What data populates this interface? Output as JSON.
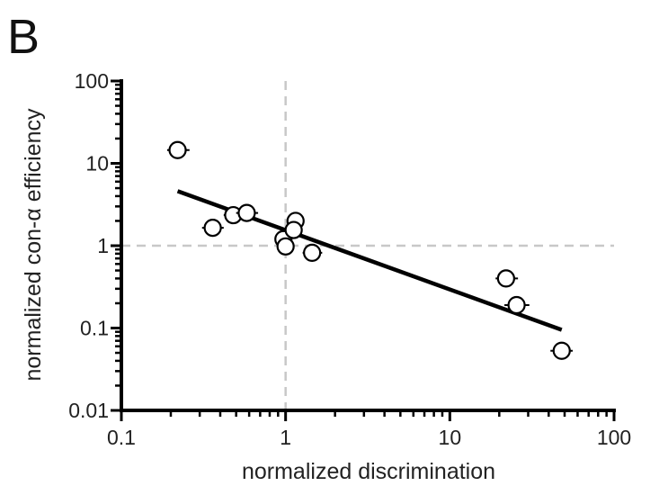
{
  "panel_label": "B",
  "chart_data": {
    "type": "scatter",
    "xlabel": "normalized discrimination",
    "ylabel": "normalized con-α efficiency",
    "xscale": "log",
    "yscale": "log",
    "xlim": [
      0.1,
      100
    ],
    "ylim": [
      0.01,
      100
    ],
    "x_tick_labels": [
      "0.1",
      "1",
      "10",
      "100"
    ],
    "y_tick_labels": [
      "0.01",
      "0.1",
      "1",
      "10",
      "100"
    ],
    "reference_lines": {
      "x": 1,
      "y": 1,
      "style": "dashed",
      "color": "#c8c8c8"
    },
    "points": [
      {
        "x": 0.22,
        "y": 14.5,
        "xerr": [
          0.19,
          0.26
        ]
      },
      {
        "x": 0.36,
        "y": 1.65,
        "xerr": [
          0.31,
          0.42
        ]
      },
      {
        "x": 0.48,
        "y": 2.35,
        "xerr": [
          0.42,
          0.55
        ]
      },
      {
        "x": 0.58,
        "y": 2.5,
        "xerr": [
          0.5,
          0.68
        ]
      },
      {
        "x": 0.97,
        "y": 1.2,
        "xerr": [
          0.88,
          1.07
        ]
      },
      {
        "x": 1.0,
        "y": 0.98,
        "xerr": [
          0.92,
          1.09
        ]
      },
      {
        "x": 1.15,
        "y": 2.0,
        "xerr": [
          1.02,
          1.3
        ]
      },
      {
        "x": 1.12,
        "y": 1.55,
        "xerr": [
          1.0,
          1.26
        ]
      },
      {
        "x": 1.45,
        "y": 0.82,
        "xerr": [
          1.27,
          1.67
        ]
      },
      {
        "x": 22.0,
        "y": 0.4,
        "xerr": [
          19.0,
          26.0
        ]
      },
      {
        "x": 25.5,
        "y": 0.19,
        "xerr": [
          21.5,
          30.5
        ]
      },
      {
        "x": 48.0,
        "y": 0.053,
        "xerr": [
          41.0,
          56.0
        ]
      }
    ],
    "fit_line": {
      "x": [
        0.22,
        48.0
      ],
      "y": [
        4.6,
        0.095
      ]
    },
    "colors": {
      "axis": "#000000",
      "fit": "#000000",
      "marker_fill": "#ffffff",
      "marker_edge": "#000000"
    }
  }
}
